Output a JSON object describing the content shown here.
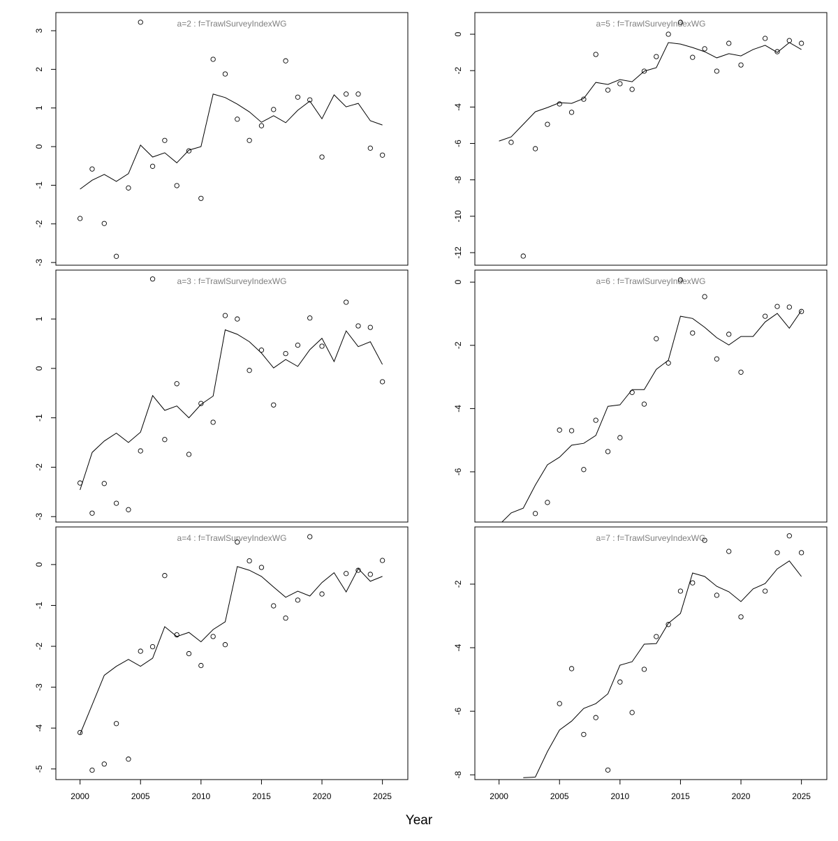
{
  "chart_data": {
    "type": "scatter+line",
    "xlabel": "Year",
    "xlim": [
      1998,
      2027.1
    ],
    "x_ticks": [
      2000,
      2005,
      2010,
      2015,
      2020,
      2025
    ],
    "title_color": "#808080",
    "panels": [
      {
        "title": "a=2  :  f=TrawlSurveyIndexWG",
        "ylim": [
          -3.07,
          3.47
        ],
        "y_ticks": [
          -3,
          -2,
          -1,
          0,
          1,
          2,
          3
        ],
        "observed": {
          "x": [
            2000,
            2001,
            2002,
            2003,
            2004,
            2005,
            2006,
            2007,
            2008,
            2009,
            2010,
            2011,
            2012,
            2013,
            2014,
            2015,
            2016,
            2017,
            2018,
            2019,
            2020,
            2022,
            2023,
            2024,
            2025
          ],
          "y": [
            -1.86,
            -0.58,
            -1.99,
            -2.84,
            -1.07,
            3.22,
            -0.51,
            0.16,
            -1.01,
            -0.11,
            -1.34,
            2.26,
            1.88,
            0.71,
            0.16,
            0.54,
            0.96,
            2.22,
            1.28,
            1.21,
            -0.27,
            1.36,
            1.36,
            -0.04,
            -0.22
          ]
        },
        "fitted": {
          "x": [
            2000,
            2001,
            2002,
            2003,
            2004,
            2005,
            2006,
            2007,
            2008,
            2009,
            2010,
            2011,
            2012,
            2013,
            2014,
            2015,
            2016,
            2017,
            2018,
            2019,
            2020,
            2021,
            2022,
            2023,
            2024,
            2025
          ],
          "y": [
            -1.1,
            -0.87,
            -0.72,
            -0.9,
            -0.7,
            0.04,
            -0.27,
            -0.16,
            -0.42,
            -0.09,
            0.0,
            1.36,
            1.27,
            1.1,
            0.9,
            0.63,
            0.8,
            0.62,
            0.94,
            1.18,
            0.72,
            1.34,
            1.03,
            1.12,
            0.67,
            0.56
          ]
        }
      },
      {
        "title": "a=3  :  f=TrawlSurveyIndexWG",
        "ylim": [
          -3.11,
          1.99
        ],
        "y_ticks": [
          -3,
          -2,
          -1,
          0,
          1
        ],
        "observed": {
          "x": [
            2000,
            2001,
            2002,
            2003,
            2004,
            2005,
            2006,
            2007,
            2008,
            2009,
            2010,
            2011,
            2012,
            2013,
            2014,
            2015,
            2016,
            2017,
            2018,
            2019,
            2020,
            2022,
            2023,
            2024,
            2025
          ],
          "y": [
            -2.32,
            -2.93,
            -2.33,
            -2.73,
            -2.86,
            -1.67,
            1.81,
            -1.44,
            -0.31,
            -1.74,
            -0.71,
            -1.09,
            1.07,
            1.0,
            -0.04,
            0.37,
            -0.74,
            0.3,
            0.47,
            1.02,
            0.45,
            1.34,
            0.86,
            0.83,
            -0.27
          ]
        },
        "fitted": {
          "x": [
            2000,
            2001,
            2002,
            2003,
            2004,
            2005,
            2006,
            2007,
            2008,
            2009,
            2010,
            2011,
            2012,
            2013,
            2014,
            2015,
            2016,
            2017,
            2018,
            2019,
            2020,
            2021,
            2022,
            2023,
            2024,
            2025
          ],
          "y": [
            -2.46,
            -1.7,
            -1.47,
            -1.31,
            -1.5,
            -1.29,
            -0.55,
            -0.85,
            -0.76,
            -1.0,
            -0.73,
            -0.56,
            0.78,
            0.69,
            0.54,
            0.31,
            0.01,
            0.18,
            0.04,
            0.38,
            0.61,
            0.14,
            0.76,
            0.44,
            0.54,
            0.08
          ]
        }
      },
      {
        "title": "a=4  :  f=TrawlSurveyIndexWG",
        "ylim": [
          -5.26,
          0.92
        ],
        "y_ticks": [
          -5,
          -4,
          -3,
          -2,
          -1,
          0
        ],
        "observed": {
          "x": [
            2000,
            2001,
            2002,
            2003,
            2004,
            2005,
            2006,
            2007,
            2008,
            2009,
            2010,
            2011,
            2012,
            2013,
            2014,
            2015,
            2016,
            2017,
            2018,
            2019,
            2020,
            2022,
            2023,
            2024,
            2025
          ],
          "y": [
            -4.11,
            -5.03,
            -4.88,
            -3.89,
            -4.76,
            -2.12,
            -2.01,
            -0.27,
            -1.72,
            -2.18,
            -2.47,
            -1.76,
            -1.96,
            0.55,
            0.09,
            -0.07,
            -1.01,
            -1.31,
            -0.87,
            0.68,
            -0.72,
            -0.22,
            -0.14,
            -0.24,
            0.1
          ]
        },
        "fitted": {
          "x": [
            2000,
            2001,
            2002,
            2003,
            2004,
            2005,
            2006,
            2007,
            2008,
            2009,
            2010,
            2011,
            2012,
            2013,
            2014,
            2015,
            2016,
            2017,
            2018,
            2019,
            2020,
            2021,
            2022,
            2023,
            2024,
            2025
          ],
          "y": [
            -4.15,
            -3.43,
            -2.71,
            -2.49,
            -2.32,
            -2.49,
            -2.29,
            -1.52,
            -1.76,
            -1.66,
            -1.89,
            -1.59,
            -1.4,
            -0.05,
            -0.14,
            -0.29,
            -0.55,
            -0.8,
            -0.65,
            -0.77,
            -0.44,
            -0.2,
            -0.67,
            -0.1,
            -0.41,
            -0.29
          ]
        }
      },
      {
        "title": "a=5  :  f=TrawlSurveyIndexWG",
        "ylim": [
          -12.69,
          1.19
        ],
        "y_ticks": [
          -12,
          -10,
          -8,
          -6,
          -4,
          -2,
          0
        ],
        "observed": {
          "x": [
            2001,
            2002,
            2003,
            2004,
            2005,
            2006,
            2007,
            2008,
            2009,
            2010,
            2011,
            2012,
            2013,
            2014,
            2015,
            2016,
            2017,
            2018,
            2019,
            2020,
            2022,
            2023,
            2024,
            2025
          ],
          "y": [
            -5.94,
            -12.19,
            -6.29,
            -4.95,
            -3.83,
            -4.29,
            -3.57,
            -1.11,
            -3.07,
            -2.72,
            -3.03,
            -2.03,
            -1.23,
            0.0,
            0.65,
            -1.27,
            -0.8,
            -2.03,
            -0.5,
            -1.69,
            -0.23,
            -0.96,
            -0.35,
            -0.5
          ]
        },
        "fitted": {
          "x": [
            2000,
            2001,
            2002,
            2003,
            2004,
            2005,
            2006,
            2007,
            2008,
            2009,
            2010,
            2011,
            2012,
            2013,
            2014,
            2015,
            2016,
            2017,
            2018,
            2019,
            2020,
            2021,
            2022,
            2023,
            2024,
            2025
          ],
          "y": [
            -5.87,
            -5.64,
            -4.95,
            -4.26,
            -4.03,
            -3.76,
            -3.8,
            -3.53,
            -2.65,
            -2.76,
            -2.49,
            -2.61,
            -2.03,
            -1.84,
            -0.46,
            -0.54,
            -0.73,
            -0.96,
            -1.3,
            -1.07,
            -1.19,
            -0.84,
            -0.61,
            -1.0,
            -0.46,
            -0.84
          ]
        }
      },
      {
        "title": "a=6  :  f=TrawlSurveyIndexWG",
        "ylim": [
          -7.59,
          0.38
        ],
        "y_ticks": [
          -6,
          -4,
          -2,
          0
        ],
        "observed": {
          "x": [
            2003,
            2004,
            2005,
            2006,
            2007,
            2008,
            2009,
            2010,
            2011,
            2012,
            2013,
            2014,
            2015,
            2016,
            2017,
            2018,
            2019,
            2020,
            2022,
            2023,
            2024,
            2025
          ],
          "y": [
            -7.32,
            -6.97,
            -4.68,
            -4.7,
            -5.93,
            -4.37,
            -5.36,
            -4.92,
            -3.49,
            -3.86,
            -1.79,
            -2.56,
            0.07,
            -1.61,
            -0.46,
            -2.43,
            -1.65,
            -2.85,
            -1.08,
            -0.77,
            -0.79,
            -0.93
          ]
        },
        "fitted": {
          "x": [
            2000,
            2001,
            2002,
            2003,
            2004,
            2005,
            2006,
            2007,
            2008,
            2009,
            2010,
            2011,
            2012,
            2013,
            2014,
            2015,
            2016,
            2017,
            2018,
            2019,
            2020,
            2021,
            2022,
            2023,
            2024,
            2025
          ],
          "y": [
            -7.68,
            -7.3,
            -7.15,
            -6.42,
            -5.78,
            -5.54,
            -5.16,
            -5.1,
            -4.85,
            -3.93,
            -3.88,
            -3.4,
            -3.4,
            -2.76,
            -2.47,
            -1.08,
            -1.15,
            -1.43,
            -1.76,
            -1.99,
            -1.72,
            -1.72,
            -1.26,
            -0.99,
            -1.46,
            -0.9
          ]
        }
      },
      {
        "title": "a=7  :  f=TrawlSurveyIndexWG",
        "ylim": [
          -8.15,
          -0.2
        ],
        "y_ticks": [
          -8,
          -6,
          -4,
          -2
        ],
        "observed": {
          "x": [
            2005,
            2006,
            2007,
            2008,
            2009,
            2010,
            2011,
            2012,
            2013,
            2014,
            2015,
            2016,
            2017,
            2018,
            2019,
            2020,
            2022,
            2023,
            2024,
            2025
          ],
          "y": [
            -5.76,
            -4.66,
            -6.73,
            -6.2,
            -7.85,
            -5.08,
            -6.04,
            -4.68,
            -3.65,
            -3.27,
            -2.22,
            -1.96,
            -0.62,
            -2.35,
            -0.97,
            -3.03,
            -2.22,
            -1.01,
            -0.48,
            -1.01
          ]
        },
        "fitted": {
          "x": [
            2002,
            2003,
            2004,
            2005,
            2006,
            2007,
            2008,
            2009,
            2010,
            2011,
            2012,
            2013,
            2014,
            2015,
            2016,
            2017,
            2018,
            2019,
            2020,
            2021,
            2022,
            2023,
            2024,
            2025
          ],
          "y": [
            -8.09,
            -8.07,
            -7.27,
            -6.59,
            -6.31,
            -5.91,
            -5.76,
            -5.45,
            -4.55,
            -4.44,
            -3.89,
            -3.87,
            -3.23,
            -2.92,
            -1.65,
            -1.76,
            -2.07,
            -2.24,
            -2.55,
            -2.15,
            -1.98,
            -1.52,
            -1.27,
            -1.76
          ]
        }
      }
    ]
  }
}
